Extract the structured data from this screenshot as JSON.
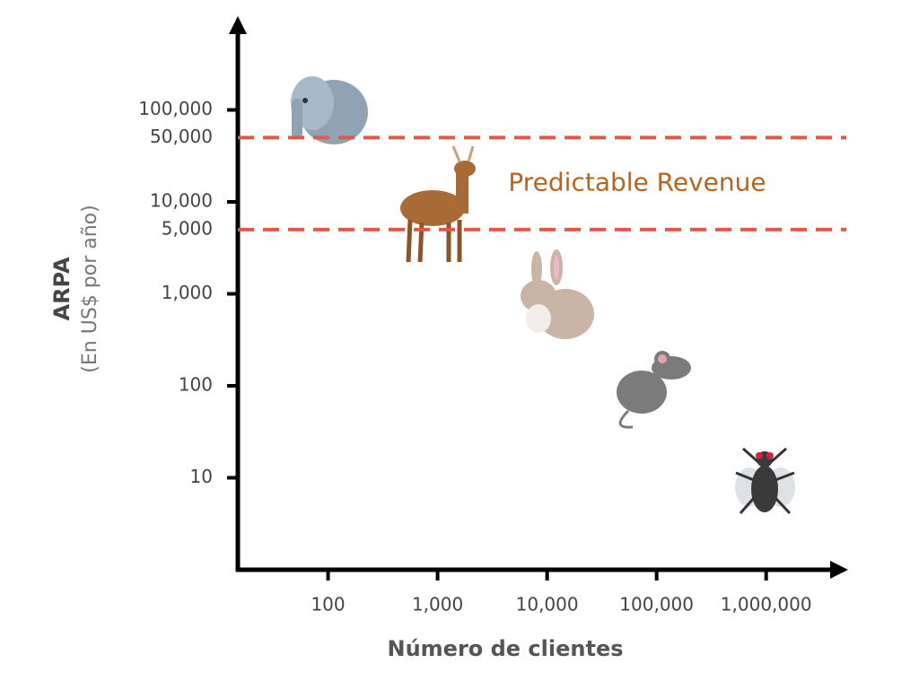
{
  "chart_data": {
    "type": "scatter",
    "y_label": "ARPA",
    "y_sublabel": "(En US$ por año)",
    "x_label": "Número de clientes",
    "xscale": "log",
    "yscale": "log",
    "xlim": [
      15,
      5000000
    ],
    "ylim": [
      1,
      1000000
    ],
    "xticks": [
      100,
      {
        "value": 1000,
        "label": "1,000"
      },
      {
        "value": 10000,
        "label": "10,000"
      },
      {
        "value": 100000,
        "label": "100,000"
      },
      {
        "value": 1000000,
        "label": "1,000,000"
      }
    ],
    "yticks": [
      10,
      100,
      {
        "value": 1000,
        "label": "1,000"
      },
      {
        "value": 10000,
        "label": "10,000"
      },
      {
        "value": 100000,
        "label": "100,000"
      }
    ],
    "reference_lines": [
      {
        "value": 50000,
        "label": "50,000",
        "color": "#e05a47"
      },
      {
        "value": 5000,
        "label": "5,000",
        "color": "#e05a47"
      }
    ],
    "annotation": {
      "text": "Predictable Revenue",
      "color": "#b5651d"
    }
  }
}
